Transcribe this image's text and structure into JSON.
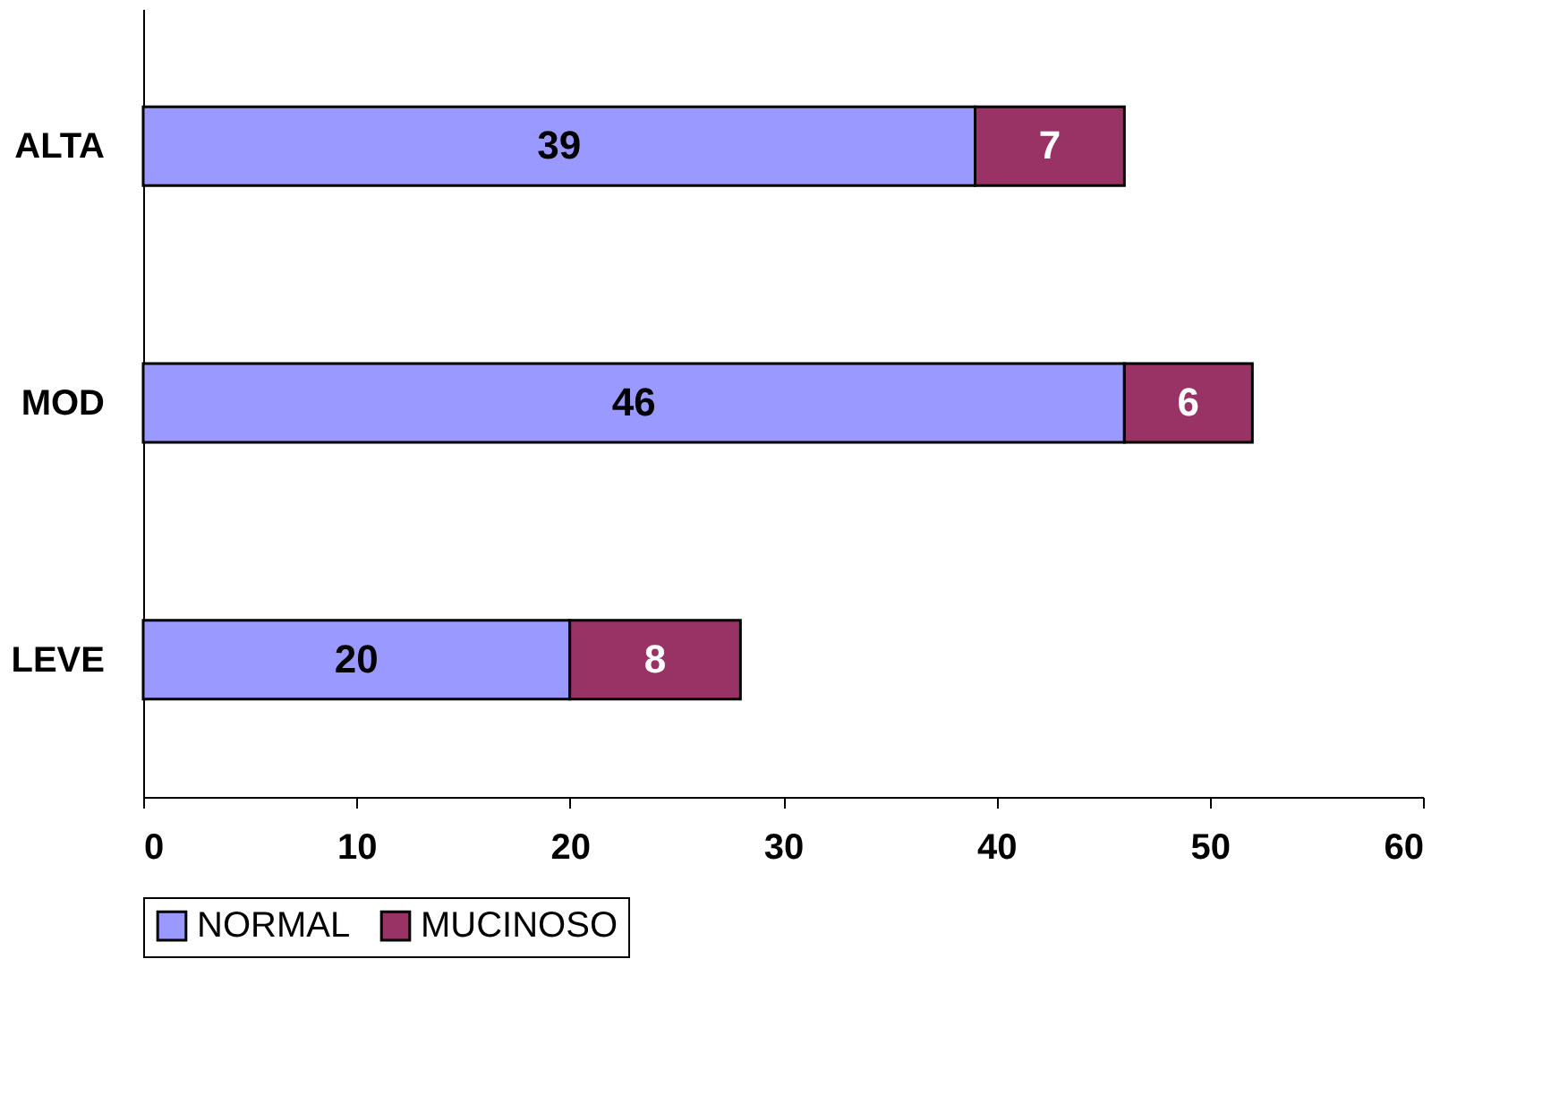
{
  "chart_data": {
    "type": "bar",
    "orientation": "horizontal",
    "stacked": true,
    "categories": [
      "ALTA",
      "MOD",
      "LEVE"
    ],
    "series": [
      {
        "name": "NORMAL",
        "color": "#9999ff",
        "values": [
          39,
          46,
          20
        ]
      },
      {
        "name": "MUCINOSO",
        "color": "#993366",
        "values": [
          7,
          6,
          8
        ]
      }
    ],
    "xlim": [
      0,
      60
    ],
    "xticks": [
      0,
      10,
      20,
      30,
      40,
      50,
      60
    ],
    "grid": false,
    "legend": "bottom",
    "data_labels": true
  }
}
